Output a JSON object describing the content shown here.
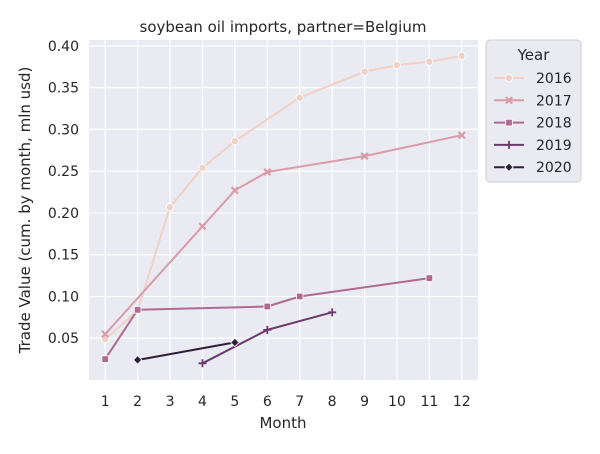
{
  "chart_data": {
    "type": "line",
    "title": "soybean oil imports, partner=Belgium",
    "xlabel": "Month",
    "ylabel": "Trade Value (cum. by month, mln usd)",
    "xlim": [
      0.5,
      12.5
    ],
    "ylim": [
      0.0,
      0.407
    ],
    "x_ticks": [
      1,
      2,
      3,
      4,
      5,
      6,
      7,
      8,
      9,
      10,
      11,
      12
    ],
    "y_ticks": [
      0.05,
      0.1,
      0.15,
      0.2,
      0.25,
      0.3,
      0.35,
      0.4
    ],
    "y_tick_labels": [
      "0.05",
      "0.10",
      "0.15",
      "0.20",
      "0.25",
      "0.30",
      "0.35",
      "0.40"
    ],
    "grid": true,
    "legend": {
      "title": "Year",
      "placement": "outside-right"
    },
    "series": [
      {
        "name": "2016",
        "color": "#efd1c6",
        "marker": "circle",
        "x": [
          1,
          2,
          3,
          4,
          5,
          7,
          9,
          10,
          11,
          12
        ],
        "y": [
          0.049,
          0.083,
          0.207,
          0.254,
          0.286,
          0.338,
          0.369,
          0.377,
          0.381,
          0.388
        ]
      },
      {
        "name": "2017",
        "color": "#d99ca9",
        "marker": "x",
        "x": [
          1,
          4,
          5,
          6,
          9,
          12
        ],
        "y": [
          0.055,
          0.184,
          0.227,
          0.249,
          0.268,
          0.293
        ]
      },
      {
        "name": "2018",
        "color": "#b06a90",
        "marker": "square",
        "x": [
          1,
          2,
          6,
          7,
          11
        ],
        "y": [
          0.025,
          0.084,
          0.088,
          0.1,
          0.122
        ]
      },
      {
        "name": "2019",
        "color": "#6b3b6e",
        "marker": "plus",
        "x": [
          4,
          6,
          8
        ],
        "y": [
          0.02,
          0.06,
          0.081
        ]
      },
      {
        "name": "2020",
        "color": "#2d1e3e",
        "marker": "diamond",
        "x": [
          2,
          5
        ],
        "y": [
          0.024,
          0.045
        ]
      }
    ]
  }
}
